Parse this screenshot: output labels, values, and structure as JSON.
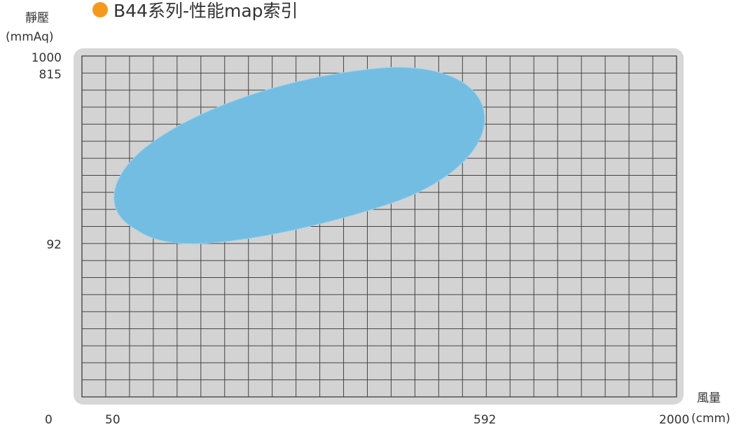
{
  "header": {
    "title": "B44系列-性能map索引",
    "bullet_color": "#f39a1e"
  },
  "chart_data": {
    "type": "area",
    "title": "B44系列-性能map索引",
    "ylabel_line1": "靜壓",
    "ylabel_line2": "(mmAq)",
    "xlabel_line1": "風量",
    "xlabel_line2": "(cmm)",
    "origin_label": "0",
    "y_ticks": [
      "1000",
      "815",
      "92"
    ],
    "x_ticks": [
      "50",
      "592",
      "2000"
    ],
    "ylim": [
      0,
      1000
    ],
    "xlim": [
      0,
      2000
    ],
    "grid": true,
    "region_color": "#74bde2",
    "plot_bg": "#d3d3d3",
    "frame_bg": "#d7d7d7"
  }
}
